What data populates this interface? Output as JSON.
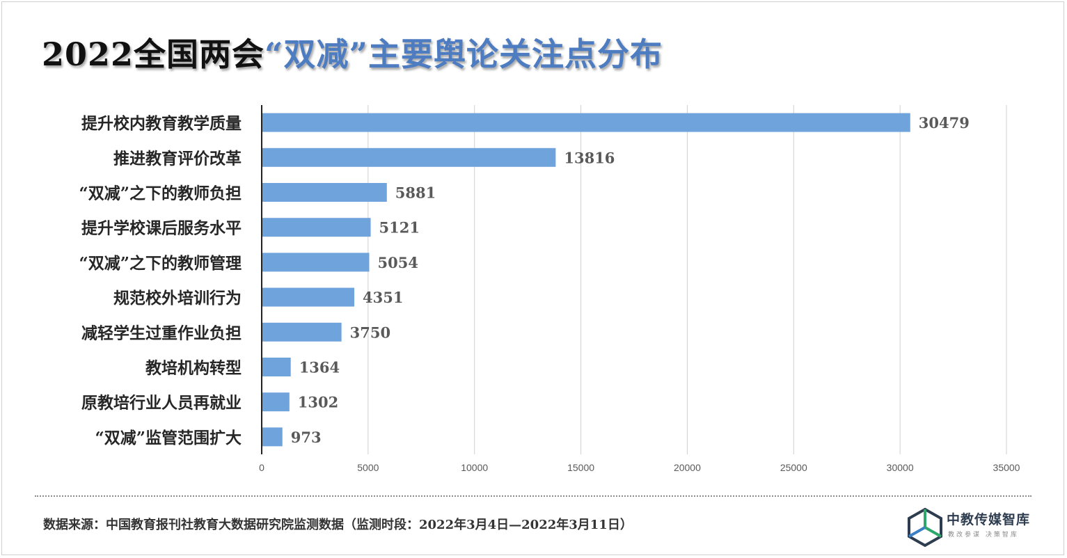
{
  "title": {
    "part1": "2022全国两会",
    "part2": "“双减”",
    "part3": "主要舆论关注点分布"
  },
  "chart_data": {
    "type": "bar",
    "orientation": "horizontal",
    "categories": [
      "提升校内教育教学质量",
      "推进教育评价改革",
      "“双减”之下的教师负担",
      "提升学校课后服务水平",
      "“双减”之下的教师管理",
      "规范校外培训行为",
      "减轻学生过重作业负担",
      "教培机构转型",
      "原教培行业人员再就业",
      "“双减”监管范围扩大"
    ],
    "values": [
      30479,
      13816,
      5881,
      5121,
      5054,
      4351,
      3750,
      1364,
      1302,
      973
    ],
    "xlim": [
      0,
      35000
    ],
    "xticks": [
      "0",
      "5000",
      "10000",
      "15000",
      "20000",
      "25000",
      "30000",
      "35000"
    ],
    "xtick_values": [
      0,
      5000,
      10000,
      15000,
      20000,
      25000,
      30000,
      35000
    ],
    "grid": true,
    "bar_color": "#6fa3dc",
    "xlabel": "",
    "ylabel": ""
  },
  "footer": {
    "source": "数据来源：中国教育报刊社教育大数据研究院监测数据（监测时段：2022年3月4日—2022年3月11日）"
  },
  "logo": {
    "name": "中教传媒智库",
    "slogan": "教改参谋  决策智库"
  },
  "colors": {
    "accent": "#4e7cc0",
    "bar": "#6fa3dc",
    "grid": "#d0d0d0"
  }
}
